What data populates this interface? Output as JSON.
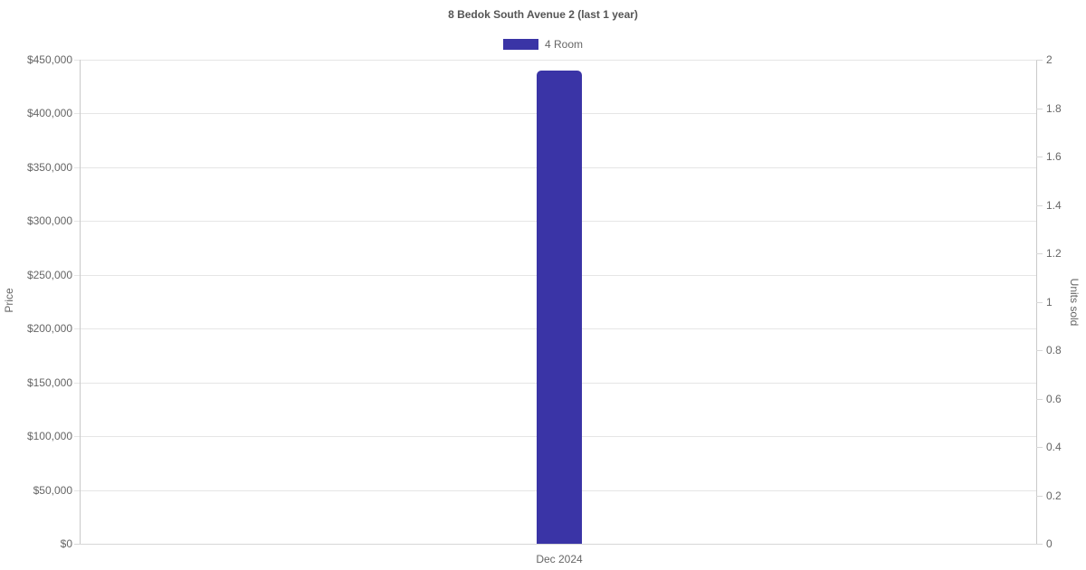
{
  "chart_data": {
    "type": "bar",
    "title": "8 Bedok South Avenue 2 (last 1 year)",
    "categories": [
      "Dec 2024"
    ],
    "series": [
      {
        "name": "4 Room",
        "axis": "left",
        "color": "#3a34a6",
        "values": [
          440000
        ]
      }
    ],
    "left_axis": {
      "label": "Price",
      "min": 0,
      "max": 450000,
      "tick_step": 50000,
      "ticks": [
        "$450,000",
        "$400,000",
        "$350,000",
        "$300,000",
        "$250,000",
        "$200,000",
        "$150,000",
        "$100,000",
        "$50,000",
        "$0"
      ]
    },
    "right_axis": {
      "label": "Units sold",
      "min": 0,
      "max": 2,
      "tick_step": 0.2,
      "ticks": [
        "2",
        "1.8",
        "1.6",
        "1.4",
        "1.2",
        "1",
        "0.8",
        "0.6",
        "0.4",
        "0.2",
        "0"
      ]
    },
    "grid": true,
    "legend_position": "top",
    "background": "#ffffff",
    "text_color": "#666666",
    "title_color": "#555555"
  }
}
